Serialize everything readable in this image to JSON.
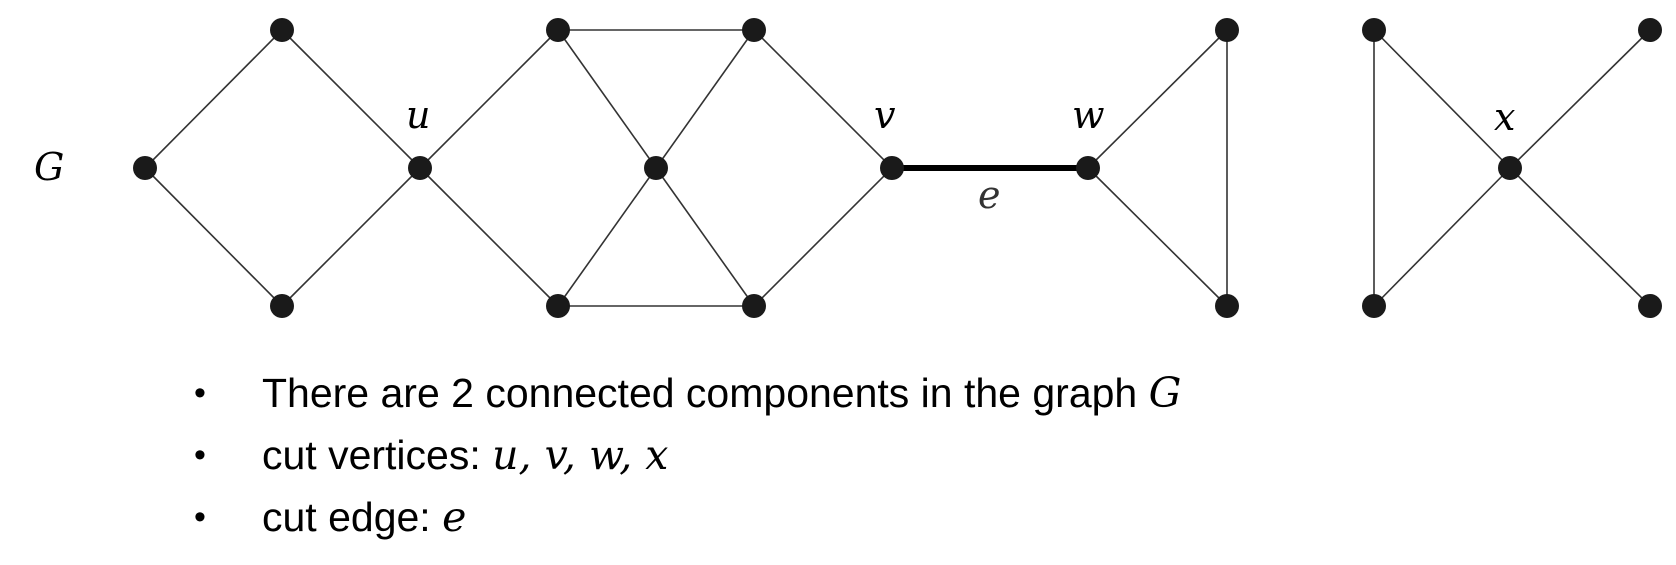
{
  "graph": {
    "name_label": "G",
    "vertex_labels": {
      "u": "u",
      "v": "v",
      "w": "w",
      "x": "x"
    },
    "edge_labels": {
      "e": "e"
    },
    "cut_edge": "e",
    "cut_vertices": [
      "u",
      "v",
      "w",
      "x"
    ],
    "components": 2
  },
  "bullets": [
    {
      "text": "There are 2 connected components in the graph ",
      "math": "G"
    },
    {
      "text": "cut vertices: ",
      "math": "u, v, w, x"
    },
    {
      "text": "cut edge: ",
      "math": "e"
    }
  ],
  "colors": {
    "vertex": "#1a1a1a",
    "edge": "#333333",
    "cut_edge": "#000000"
  }
}
